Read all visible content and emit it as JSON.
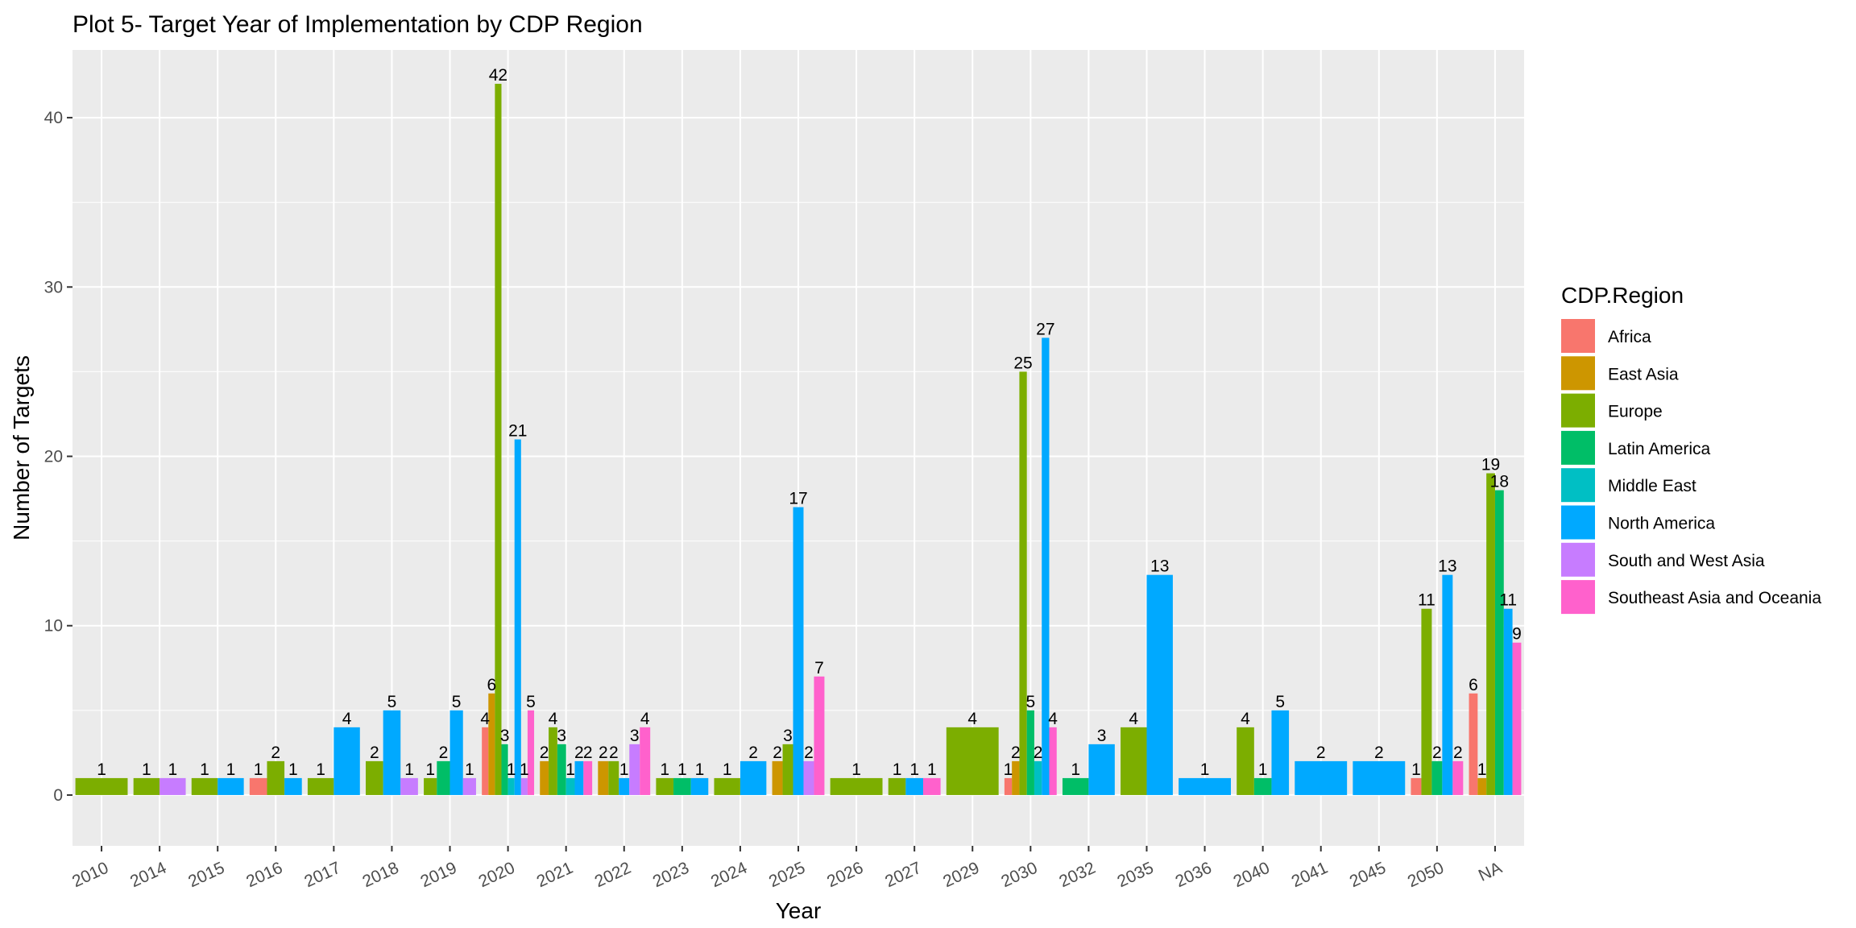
{
  "chart_data": {
    "type": "bar",
    "title": "Plot 5- Target Year of Implementation by CDP Region",
    "xlabel": "Year",
    "ylabel": "Number of Targets",
    "ylim": [
      -3,
      44
    ],
    "yticks": [
      0,
      10,
      20,
      30,
      40
    ],
    "grid": true,
    "legend_position": "right",
    "legend_title": "CDP.Region",
    "categories": [
      "2010",
      "2014",
      "2015",
      "2016",
      "2017",
      "2018",
      "2019",
      "2020",
      "2021",
      "2022",
      "2023",
      "2024",
      "2025",
      "2026",
      "2027",
      "2029",
      "2030",
      "2032",
      "2035",
      "2036",
      "2040",
      "2041",
      "2045",
      "2050",
      "NA"
    ],
    "series": [
      {
        "name": "Africa",
        "color": "#F8766D",
        "values": [
          null,
          null,
          null,
          1,
          null,
          null,
          null,
          4,
          null,
          null,
          null,
          null,
          null,
          null,
          null,
          null,
          1,
          null,
          null,
          null,
          null,
          null,
          null,
          1,
          6
        ]
      },
      {
        "name": "East Asia",
        "color": "#CD9600",
        "values": [
          null,
          null,
          null,
          null,
          null,
          null,
          null,
          6,
          2,
          2,
          null,
          null,
          2,
          null,
          null,
          null,
          2,
          null,
          null,
          null,
          null,
          null,
          null,
          null,
          1
        ]
      },
      {
        "name": "Europe",
        "color": "#7CAE00",
        "values": [
          1,
          1,
          1,
          2,
          1,
          2,
          1,
          42,
          4,
          2,
          1,
          1,
          3,
          1,
          1,
          4,
          25,
          null,
          4,
          null,
          4,
          null,
          null,
          11,
          19
        ]
      },
      {
        "name": "Latin America",
        "color": "#00BE67",
        "values": [
          null,
          null,
          null,
          null,
          null,
          null,
          2,
          3,
          3,
          null,
          1,
          null,
          null,
          null,
          null,
          null,
          5,
          1,
          null,
          null,
          1,
          null,
          null,
          2,
          18
        ]
      },
      {
        "name": "Middle East",
        "color": "#00BFC4",
        "values": [
          null,
          null,
          null,
          null,
          null,
          null,
          null,
          1,
          1,
          null,
          null,
          null,
          null,
          null,
          null,
          null,
          2,
          null,
          null,
          null,
          null,
          null,
          null,
          null,
          null
        ]
      },
      {
        "name": "North America",
        "color": "#00A9FF",
        "values": [
          null,
          null,
          1,
          1,
          4,
          5,
          5,
          21,
          2,
          1,
          1,
          2,
          17,
          null,
          1,
          null,
          27,
          3,
          13,
          1,
          5,
          2,
          2,
          13,
          11
        ]
      },
      {
        "name": "South and West Asia",
        "color": "#C77CFF",
        "values": [
          null,
          1,
          null,
          null,
          null,
          1,
          1,
          1,
          null,
          3,
          null,
          null,
          2,
          null,
          null,
          null,
          null,
          null,
          null,
          null,
          null,
          null,
          null,
          null,
          null
        ]
      },
      {
        "name": "Southeast Asia and Oceania",
        "color": "#FF61CC",
        "values": [
          null,
          null,
          null,
          null,
          null,
          null,
          null,
          5,
          2,
          4,
          null,
          null,
          7,
          null,
          1,
          null,
          4,
          null,
          null,
          null,
          null,
          null,
          null,
          2,
          9
        ]
      }
    ]
  }
}
